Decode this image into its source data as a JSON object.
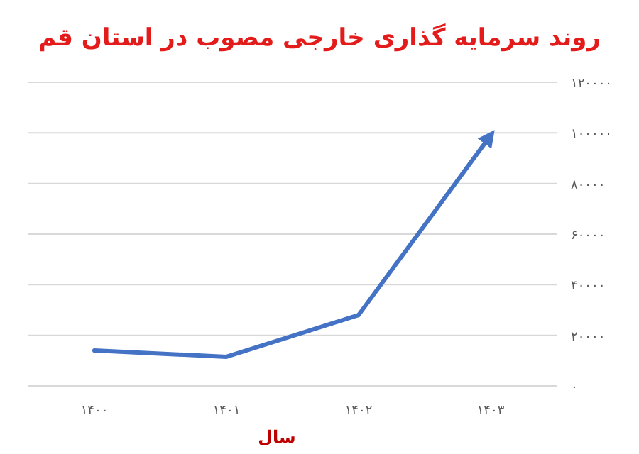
{
  "chart_data": {
    "type": "line",
    "title": "روند سرمایه گذاری خارجی مصوب در استان قم",
    "xlabel": "سال",
    "categories": [
      "۱۴۰۰",
      "۱۴۰۱",
      "۱۴۰۲",
      "۱۴۰۳"
    ],
    "series": [
      {
        "color": "#4472c4",
        "values": [
          14000,
          11500,
          28000,
          99000
        ]
      }
    ],
    "ylim": [
      0,
      120000
    ],
    "yticks": [
      {
        "value": 0,
        "label": "۰"
      },
      {
        "value": 20000,
        "label": "۲۰۰۰۰"
      },
      {
        "value": 40000,
        "label": "۴۰۰۰۰"
      },
      {
        "value": 60000,
        "label": "۶۰۰۰۰"
      },
      {
        "value": 80000,
        "label": "۸۰۰۰۰"
      },
      {
        "value": 100000,
        "label": "۱۰۰۰۰۰"
      },
      {
        "value": 120000,
        "label": "۱۲۰۰۰۰"
      }
    ],
    "grid": "y"
  }
}
